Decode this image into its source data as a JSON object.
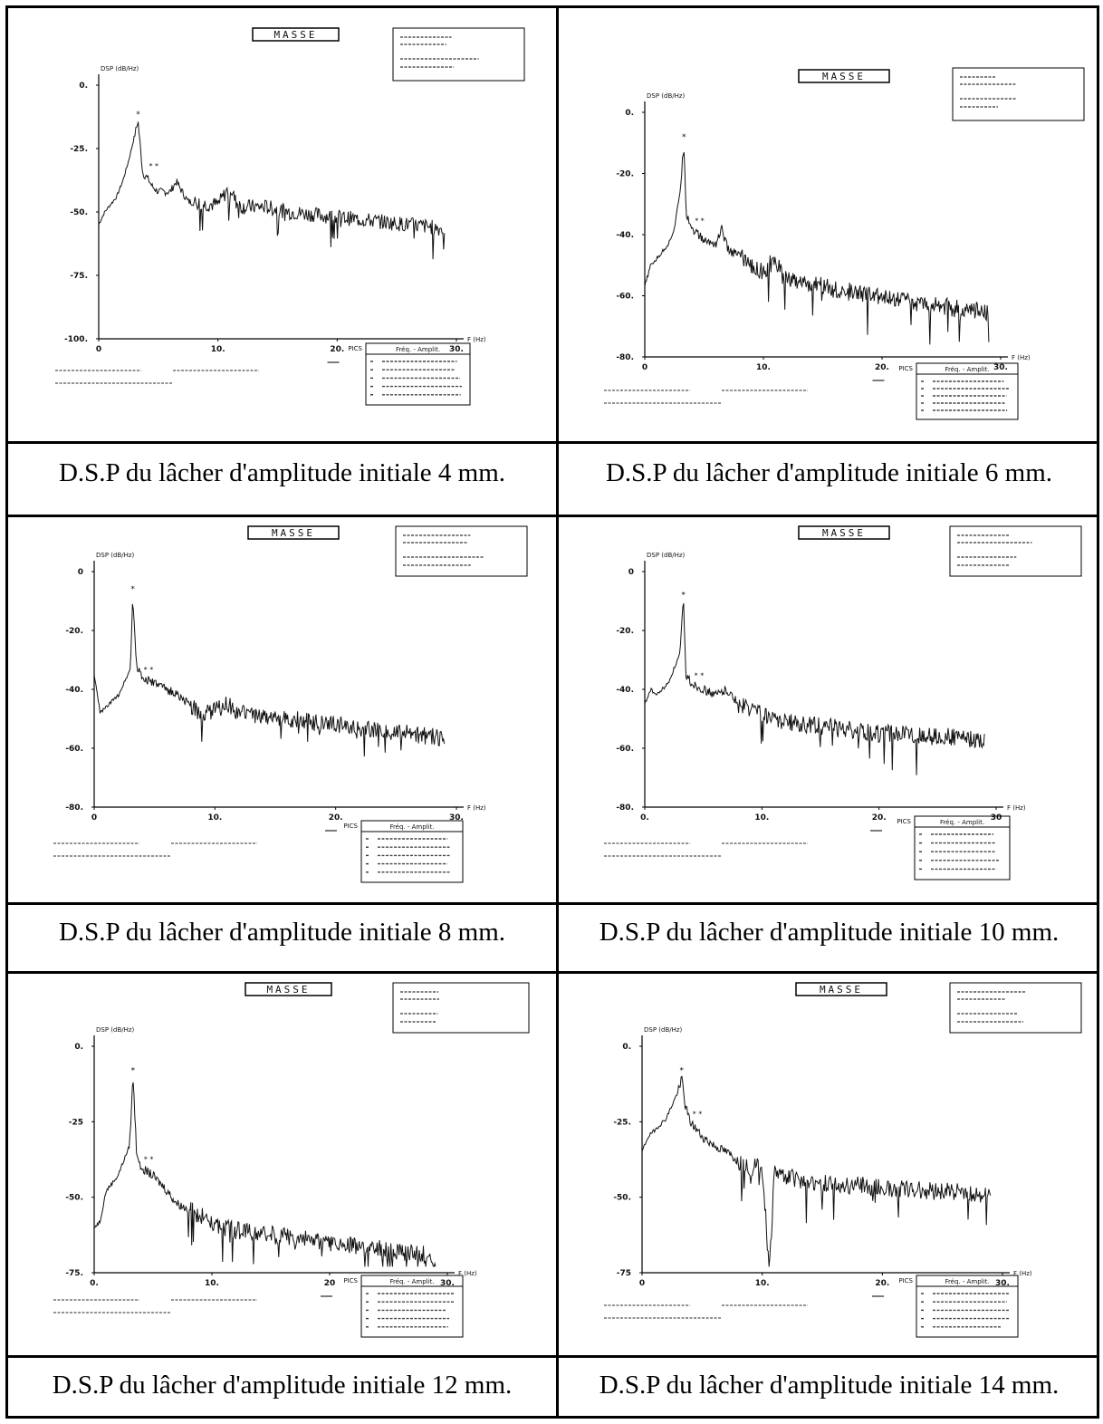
{
  "figure": {
    "panels": [
      {
        "id": "p4",
        "header": "MASSE",
        "ylabel": "DSP (dB/Hz)",
        "xlabel": "F (Hz)",
        "caption": "D.S.P du lâcher d'amplitude initiale 4 mm.",
        "yticks": [
          "0.",
          "-25.",
          "-50.",
          "-75.",
          "-100."
        ],
        "xticks": [
          "0",
          "10.",
          "20.",
          "30."
        ],
        "peaks_header": "PICS",
        "table_header": "Fréq.   -  Amplit."
      },
      {
        "id": "p6",
        "header": "MASSE",
        "ylabel": "DSP (dB/Hz)",
        "xlabel": "F (Hz)",
        "caption": "D.S.P du lâcher d'amplitude initiale 6 mm.",
        "yticks": [
          "0.",
          "-20.",
          "-40.",
          "-60.",
          "-80."
        ],
        "xticks": [
          "0",
          "10.",
          "20.",
          "30."
        ],
        "peaks_header": "PICS",
        "table_header": "Fréq.   -  Amplit."
      },
      {
        "id": "p8",
        "header": "MASSE",
        "ylabel": "DSP (dB/Hz)",
        "xlabel": "F (Hz)",
        "caption": "D.S.P du lâcher d'amplitude initiale 8 mm.",
        "yticks": [
          "0",
          "-20.",
          "-40.",
          "-60.",
          "-80."
        ],
        "xticks": [
          "0",
          "10.",
          "20.",
          "30."
        ],
        "peaks_header": "PICS",
        "table_header": "Fréq.   -  Amplit."
      },
      {
        "id": "p10",
        "header": "MASSE",
        "ylabel": "DSP (dB/Hz)",
        "xlabel": "F (Hz)",
        "caption": "D.S.P du lâcher d'amplitude initiale 10 mm.",
        "yticks": [
          "0",
          "-20.",
          "-40.",
          "-60.",
          "-80."
        ],
        "xticks": [
          "0.",
          "10.",
          "20.",
          "30"
        ],
        "peaks_header": "PICS",
        "table_header": "Fréq.   -  Amplit."
      },
      {
        "id": "p12",
        "header": "MASSE",
        "ylabel": "DSP (dB/Hz)",
        "xlabel": "F (Hz)",
        "caption": "D.S.P du lâcher d'amplitude initiale 12 mm.",
        "yticks": [
          "0.",
          "-25",
          "-50.",
          "-75."
        ],
        "xticks": [
          "0.",
          "10.",
          "20",
          "30."
        ],
        "peaks_header": "PICS",
        "table_header": "Fréq.   -  Amplit."
      },
      {
        "id": "p14",
        "header": "MASSE",
        "ylabel": "DSP (dB/Hz)",
        "xlabel": "F (Hz)",
        "caption": "D.S.P du lâcher d'amplitude initiale 14 mm.",
        "yticks": [
          "0.",
          "-25.",
          "-50.",
          "-75"
        ],
        "xticks": [
          "0",
          "10.",
          "20.",
          "30."
        ],
        "peaks_header": "PICS",
        "table_header": "Fréq.   -  Amplit."
      }
    ]
  },
  "chart_data": [
    {
      "type": "line",
      "panel": "p4",
      "xlim": [
        0,
        30
      ],
      "ylim": [
        -100,
        0
      ],
      "x": [
        0,
        0.5,
        1,
        1.5,
        2,
        2.5,
        3,
        3.3,
        3.5,
        3.7,
        4,
        4.5,
        5,
        6,
        6.5,
        7,
        7.5,
        8,
        9,
        10,
        11,
        11.5,
        12,
        14,
        16,
        18,
        20,
        22,
        24,
        26,
        28,
        29
      ],
      "y": [
        -55,
        -50,
        -47,
        -44,
        -38,
        -30,
        -20,
        -14,
        -25,
        -35,
        -36,
        -40,
        -42,
        -42,
        -38,
        -42,
        -46,
        -46,
        -47,
        -47,
        -40,
        -46,
        -48,
        -48,
        -50,
        -51,
        -52,
        -53,
        -54,
        -55,
        -56,
        -57
      ]
    },
    {
      "type": "line",
      "panel": "p6",
      "xlim": [
        0,
        30
      ],
      "ylim": [
        -80,
        0
      ],
      "x": [
        0,
        0.5,
        1,
        2,
        2.5,
        3,
        3.3,
        3.5,
        4,
        5,
        6,
        6.5,
        7,
        8,
        9,
        10,
        11,
        11.5,
        12,
        14,
        16,
        18,
        20,
        22,
        24,
        26,
        28,
        29
      ],
      "y": [
        -57,
        -50,
        -48,
        -43,
        -38,
        -25,
        -10,
        -33,
        -38,
        -42,
        -43,
        -38,
        -45,
        -47,
        -51,
        -52,
        -48,
        -53,
        -54,
        -56,
        -58,
        -59,
        -61,
        -62,
        -63,
        -64,
        -65,
        -66
      ]
    },
    {
      "type": "line",
      "panel": "p8",
      "xlim": [
        0,
        30
      ],
      "ylim": [
        -80,
        0
      ],
      "x": [
        0,
        0.5,
        1,
        2,
        3,
        3.2,
        3.5,
        4,
        5,
        6,
        7,
        8,
        9,
        10,
        11,
        12,
        14,
        16,
        18,
        20,
        22,
        24,
        26,
        28,
        29
      ],
      "y": [
        -35,
        -48,
        -46,
        -42,
        -33,
        -8,
        -32,
        -36,
        -38,
        -40,
        -42,
        -46,
        -48,
        -47,
        -45,
        -48,
        -49,
        -50,
        -51,
        -52,
        -53,
        -54,
        -55,
        -56,
        -57
      ]
    },
    {
      "type": "line",
      "panel": "p10",
      "xlim": [
        0,
        30
      ],
      "ylim": [
        -80,
        0
      ],
      "x": [
        0,
        0.5,
        1,
        2,
        3,
        3.3,
        3.5,
        4,
        5,
        6,
        7,
        8,
        10,
        11,
        12,
        14,
        16,
        18,
        20,
        22,
        24,
        26,
        28,
        29
      ],
      "y": [
        -45,
        -40,
        -42,
        -38,
        -28,
        -10,
        -35,
        -38,
        -40,
        -42,
        -40,
        -45,
        -48,
        -50,
        -51,
        -52,
        -53,
        -54,
        -55,
        -55,
        -56,
        -56,
        -57,
        -58
      ]
    },
    {
      "type": "line",
      "panel": "p12",
      "xlim": [
        0,
        30
      ],
      "ylim": [
        -75,
        0
      ],
      "x": [
        0,
        0.5,
        1,
        2,
        3,
        3.3,
        3.6,
        4,
        5,
        6,
        7,
        8,
        9,
        10,
        11,
        12,
        14,
        16,
        18,
        20,
        22,
        24,
        26,
        28,
        29
      ],
      "y": [
        -60,
        -58,
        -48,
        -43,
        -33,
        -10,
        -35,
        -40,
        -43,
        -47,
        -52,
        -54,
        -56,
        -58,
        -60,
        -61,
        -62,
        -63,
        -64,
        -65,
        -66,
        -67,
        -68,
        -69,
        -70
      ]
    },
    {
      "type": "line",
      "panel": "p14",
      "xlim": [
        0,
        30
      ],
      "ylim": [
        -75,
        0
      ],
      "x": [
        0,
        0.5,
        1,
        2,
        3,
        3.3,
        3.6,
        4,
        5,
        6,
        7,
        8,
        9,
        10,
        10.6,
        11,
        12,
        14,
        16,
        18,
        20,
        22,
        24,
        26,
        28,
        29
      ],
      "y": [
        -35,
        -30,
        -28,
        -24,
        -15,
        -10,
        -20,
        -25,
        -30,
        -33,
        -35,
        -38,
        -40,
        -40,
        -75,
        -42,
        -43,
        -45,
        -46,
        -46,
        -47,
        -47,
        -48,
        -48,
        -49,
        -50
      ]
    }
  ]
}
